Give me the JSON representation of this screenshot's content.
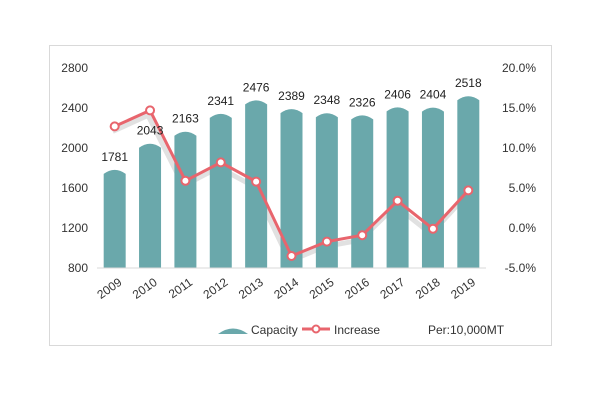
{
  "chart_data": {
    "type": "bar",
    "title": "",
    "categories": [
      "2009",
      "2010",
      "2011",
      "2012",
      "2013",
      "2014",
      "2015",
      "2016",
      "2017",
      "2018",
      "2019"
    ],
    "series": [
      {
        "name": "Capacity",
        "type": "bar",
        "axis": "left",
        "values": [
          1781,
          2043,
          2163,
          2341,
          2476,
          2389,
          2348,
          2326,
          2406,
          2404,
          2518
        ],
        "labels": [
          "1781",
          "2043",
          "2163",
          "2341",
          "2476",
          "2389",
          "2348",
          "2326",
          "2406",
          "2404",
          "2518"
        ],
        "color": "#6aa8ab"
      },
      {
        "name": "Increase",
        "type": "line",
        "axis": "right",
        "values": [
          12.7,
          14.7,
          5.9,
          8.2,
          5.8,
          -3.5,
          -1.7,
          -0.9,
          3.4,
          -0.1,
          4.7
        ],
        "color": "#e8656d"
      }
    ],
    "left_axis": {
      "min": 800,
      "max": 2800,
      "ticks": [
        "800",
        "1200",
        "1600",
        "2000",
        "2400",
        "2800"
      ],
      "tick_values": [
        800,
        1200,
        1600,
        2000,
        2400,
        2800
      ]
    },
    "right_axis": {
      "min": -5,
      "max": 20,
      "ticks": [
        "-5.0%",
        "0.0%",
        "5.0%",
        "10.0%",
        "15.0%",
        "20.0%"
      ],
      "tick_values": [
        -5,
        0,
        5,
        10,
        15,
        20
      ]
    },
    "legend": {
      "position": "bottom",
      "items": [
        "Capacity",
        "Increase"
      ]
    },
    "unit_note": "Per:10,000MT",
    "grid": false
  }
}
